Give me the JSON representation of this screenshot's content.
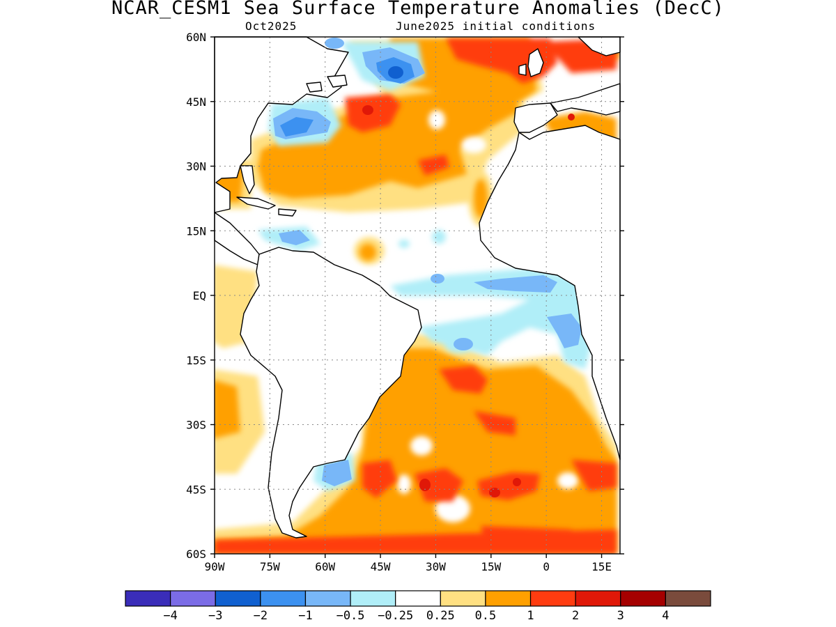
{
  "title": "NCAR_CESM1 Sea Surface Temperature Anomalies (DecC)",
  "subtitle_left": "Oct2025",
  "subtitle_right": "June2025 initial conditions",
  "map": {
    "lon_range": [
      -90,
      20
    ],
    "lat_range": [
      -60,
      60
    ],
    "gridlines": true,
    "lat_ticks": [
      {
        "value": 60,
        "label": "60N"
      },
      {
        "value": 45,
        "label": "45N"
      },
      {
        "value": 30,
        "label": "30N"
      },
      {
        "value": 15,
        "label": "15N"
      },
      {
        "value": 0,
        "label": "EQ"
      },
      {
        "value": -15,
        "label": "15S"
      },
      {
        "value": -30,
        "label": "30S"
      },
      {
        "value": -45,
        "label": "45S"
      },
      {
        "value": -60,
        "label": "60S"
      }
    ],
    "lon_ticks": [
      {
        "value": -90,
        "label": "90W"
      },
      {
        "value": -75,
        "label": "75W"
      },
      {
        "value": -60,
        "label": "60W"
      },
      {
        "value": -45,
        "label": "45W"
      },
      {
        "value": -30,
        "label": "30W"
      },
      {
        "value": -15,
        "label": "15W"
      },
      {
        "value": 0,
        "label": "0"
      },
      {
        "value": 15,
        "label": "15E"
      }
    ],
    "anomaly_regions": [
      {
        "name": "north-atlantic-warm",
        "level": "0.5-1",
        "lon": [
          -62,
          -10
        ],
        "lat": [
          24,
          50
        ]
      },
      {
        "name": "northeast-atlantic-strong-warm",
        "level": "1-2",
        "lon": [
          -40,
          -5
        ],
        "lat": [
          46,
          60
        ]
      },
      {
        "name": "labrador-cold",
        "level": "-1.5",
        "lon": [
          -48,
          -34
        ],
        "lat": [
          49,
          58
        ]
      },
      {
        "name": "gulf-of-maine-cold",
        "level": "-1",
        "lon": [
          -72,
          -58
        ],
        "lat": [
          37,
          45
        ]
      },
      {
        "name": "caribbean-cold",
        "level": "-0.5",
        "lon": [
          -70,
          -56
        ],
        "lat": [
          12,
          16
        ]
      },
      {
        "name": "gulf-of-guinea-cold",
        "level": "-0.5",
        "lon": [
          -35,
          8
        ],
        "lat": [
          -12,
          3
        ]
      },
      {
        "name": "south-atlantic-warm",
        "level": "0.5-2",
        "lon": [
          -48,
          10
        ],
        "lat": [
          -42,
          -10
        ]
      },
      {
        "name": "argentine-shelf-cold",
        "level": "-1",
        "lon": [
          -61,
          -55
        ],
        "lat": [
          -45,
          -38
        ]
      },
      {
        "name": "southern-band-warm",
        "level": "1-2",
        "lon": [
          -90,
          20
        ],
        "lat": [
          -60,
          -55
        ]
      }
    ]
  },
  "colorbar": {
    "colors": [
      "#3a2db9",
      "#7b6ce6",
      "#1060d0",
      "#3c91f0",
      "#78b7f8",
      "#b0eef8",
      "#ffffff",
      "#ffe082",
      "#ffa000",
      "#ff3c10",
      "#e01808",
      "#a50000",
      "#7a4b3c"
    ],
    "labels": [
      "−4",
      "−3",
      "−2",
      "−1",
      "−0.5",
      "−0.25",
      "0.25",
      "0.5",
      "1",
      "2",
      "3",
      "4"
    ]
  }
}
